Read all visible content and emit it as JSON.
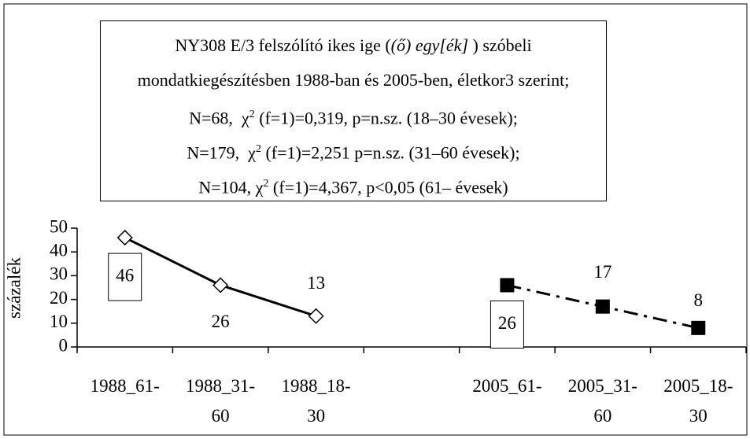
{
  "chart_data": {
    "type": "line",
    "title": [
      [
        {
          "text": "NY308 E/3 felszólító ikes ige ("
        },
        {
          "text": "(ő) egy[ék]",
          "italic": true
        },
        {
          "text": " ) szóbeli"
        }
      ],
      [
        {
          "text": "mondatkiegészítésben 1988-ban és 2005-ben, életkor3 szerint;"
        }
      ],
      [
        {
          "text": "N=68,  χ"
        },
        {
          "text": "2",
          "sup": true
        },
        {
          "text": " (f=1)=0,319, p=n.sz. (18–30 évesek);"
        }
      ],
      [
        {
          "text": "N=179,  χ"
        },
        {
          "text": "2",
          "sup": true
        },
        {
          "text": " (f=1)=2,251 p=n.sz. (31–60 évesek);"
        }
      ],
      [
        {
          "text": "N=104, χ"
        },
        {
          "text": "2",
          "sup": true
        },
        {
          "text": " (f=1)=4,367, p<0,05 (61– évesek)"
        }
      ]
    ],
    "y_label": "százalék",
    "categories": [
      "1988_61-",
      "1988_31-60",
      "1988_18-30",
      null,
      "2005_61-",
      "2005_31-60",
      "2005_18-30"
    ],
    "series": [
      {
        "color": "#000000",
        "line": "solid",
        "marker": "diamond",
        "values": [
          46,
          26,
          13,
          null,
          null,
          null,
          null
        ]
      },
      {
        "color": "#000000",
        "line": "dashdot",
        "marker": "square",
        "values": [
          null,
          null,
          null,
          null,
          26,
          17,
          8
        ]
      }
    ],
    "ylim": [
      0,
      50
    ],
    "yticks": [
      0,
      10,
      20,
      30,
      40,
      50
    ]
  }
}
